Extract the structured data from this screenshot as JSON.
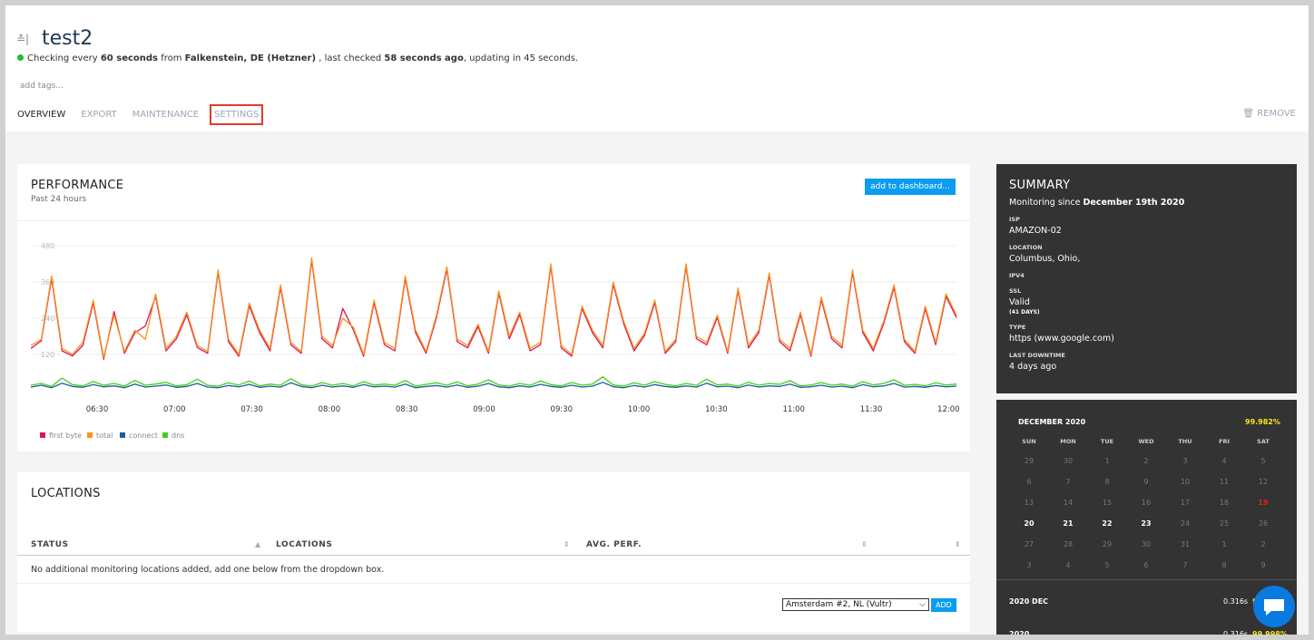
{
  "header": {
    "title": "test2",
    "status": [
      {
        "text": "Checking every "
      },
      {
        "text": "60 seconds",
        "bold": true
      },
      {
        "text": " from "
      },
      {
        "text": "Falkenstein, DE (Hetzner)",
        "bold": true
      },
      {
        "text": " , last checked "
      },
      {
        "text": "58 seconds ago",
        "bold": true
      },
      {
        "text": ", updating in 45 seconds."
      }
    ],
    "tags": "add tags...",
    "tabs": [
      "OVERVIEW",
      "EXPORT",
      "MAINTENANCE",
      "SETTINGS"
    ],
    "active_tab": 0,
    "highlighted_tab": 3,
    "remove": "REMOVE"
  },
  "performance": {
    "title": "PERFORMANCE",
    "subtitle": "Past 24 hours",
    "button": "add to dashboard..."
  },
  "chart_data": {
    "type": "line",
    "ylim": [
      0,
      480
    ],
    "yticks": [
      120,
      240,
      360,
      480
    ],
    "grid": true,
    "xticks": [
      "06:30",
      "07:00",
      "07:30",
      "08:00",
      "08:30",
      "09:00",
      "09:30",
      "10:00",
      "10:30",
      "11:00",
      "11:30",
      "12:00"
    ],
    "series": [
      {
        "name": "first byte",
        "color": "#e0105a",
        "values": [
          140,
          165,
          372,
          132,
          115,
          150,
          292,
          104,
          262,
          124,
          192,
          214,
          312,
          132,
          172,
          252,
          143,
          124,
          392,
          162,
          114,
          282,
          192,
          132,
          342,
          152,
          124,
          432,
          172,
          142,
          272,
          202,
          114,
          292,
          152,
          132,
          372,
          192,
          124,
          242,
          402,
          162,
          142,
          212,
          124,
          322,
          172,
          252,
          132,
          152,
          412,
          142,
          114,
          272,
          192,
          142,
          352,
          222,
          132,
          182,
          292,
          124,
          162,
          412,
          172,
          152,
          242,
          124,
          332,
          142,
          192,
          382,
          162,
          132,
          252,
          114,
          302,
          172,
          142,
          392,
          192,
          132,
          222,
          342,
          162,
          124,
          272,
          152,
          312,
          242
        ]
      },
      {
        "name": "total",
        "color": "#f7941d",
        "values": [
          150,
          170,
          380,
          140,
          120,
          160,
          300,
          110,
          250,
          130,
          200,
          170,
          320,
          140,
          180,
          260,
          150,
          130,
          400,
          170,
          120,
          290,
          200,
          140,
          350,
          160,
          130,
          440,
          180,
          150,
          240,
          210,
          120,
          300,
          160,
          140,
          380,
          200,
          130,
          250,
          410,
          170,
          150,
          220,
          130,
          330,
          180,
          260,
          140,
          160,
          420,
          150,
          120,
          280,
          200,
          150,
          360,
          230,
          140,
          190,
          300,
          130,
          170,
          420,
          180,
          160,
          250,
          130,
          340,
          150,
          200,
          390,
          170,
          140,
          260,
          120,
          310,
          180,
          150,
          400,
          200,
          140,
          230,
          350,
          170,
          130,
          280,
          160,
          320,
          250
        ]
      },
      {
        "name": "connect",
        "color": "#1f5c99",
        "values": [
          12,
          18,
          10,
          25,
          14,
          11,
          20,
          13,
          16,
          10,
          22,
          12,
          15,
          19,
          11,
          14,
          24,
          12,
          10,
          17,
          13,
          21,
          11,
          15,
          12,
          26,
          14,
          10,
          18,
          12,
          16,
          11,
          20,
          13,
          15,
          12,
          22,
          10,
          14,
          17,
          12,
          19,
          11,
          15,
          24,
          13,
          10,
          16,
          12,
          21,
          14,
          11,
          18,
          12,
          15,
          28,
          13,
          10,
          17,
          12,
          20,
          14,
          11,
          16,
          12,
          25,
          13,
          15,
          10,
          19,
          12,
          16,
          14,
          22,
          11,
          13,
          18,
          12,
          15,
          10,
          20,
          13,
          16,
          24,
          12,
          14,
          11,
          17,
          13,
          15
        ]
      },
      {
        "name": "dns",
        "color": "#3ecf1e",
        "values": [
          18,
          24,
          14,
          42,
          20,
          16,
          30,
          18,
          24,
          15,
          34,
          18,
          22,
          28,
          16,
          20,
          38,
          18,
          15,
          26,
          19,
          32,
          16,
          22,
          18,
          40,
          20,
          15,
          27,
          18,
          24,
          16,
          30,
          19,
          22,
          18,
          34,
          15,
          21,
          26,
          18,
          29,
          16,
          22,
          36,
          19,
          15,
          24,
          18,
          32,
          20,
          16,
          27,
          18,
          22,
          46,
          19,
          15,
          26,
          18,
          30,
          21,
          16,
          24,
          18,
          38,
          19,
          22,
          15,
          28,
          18,
          24,
          21,
          33,
          16,
          19,
          27,
          18,
          22,
          15,
          30,
          19,
          24,
          36,
          18,
          21,
          16,
          26,
          19,
          22
        ]
      }
    ]
  },
  "locations": {
    "title": "LOCATIONS",
    "columns": [
      "STATUS",
      "LOCATIONS",
      "AVG. PERF."
    ],
    "empty": "No additional monitoring locations added, add one below from the dropdown box.",
    "select": "Amsterdam #2, NL (Vultr)",
    "add": "ADD"
  },
  "summary": {
    "title": "SUMMARY",
    "since_prefix": "Monitoring since ",
    "since": "December 19th 2020",
    "fields": [
      {
        "label": "ISP",
        "value": "AMAZON-02"
      },
      {
        "label": "LOCATION",
        "value": "Columbus, Ohio,"
      },
      {
        "label": "IPV4"
      },
      {
        "label": "SSL",
        "value": "Valid",
        "note": "(41 DAYS)"
      },
      {
        "label": "TYPE",
        "value": "https (www.google.com)"
      },
      {
        "label": "LAST DOWNTIME",
        "value": "4 days ago"
      }
    ]
  },
  "calendar": {
    "month": "DECEMBER 2020",
    "uptime": "99.982%",
    "weekdays": [
      "SUN",
      "MON",
      "TUE",
      "WED",
      "THU",
      "FRI",
      "SAT"
    ],
    "weeks": [
      [
        29,
        30,
        1,
        2,
        3,
        4,
        5
      ],
      [
        6,
        7,
        8,
        9,
        10,
        11,
        12
      ],
      [
        13,
        14,
        15,
        16,
        17,
        18,
        19
      ],
      [
        20,
        21,
        22,
        23,
        24,
        25,
        26
      ],
      [
        27,
        28,
        29,
        30,
        31,
        1,
        2
      ],
      [
        3,
        4,
        5,
        6,
        7,
        8,
        9
      ]
    ],
    "periods": [
      {
        "name": "2020 DEC",
        "time": "0.316s",
        "uptime": "99.982%"
      },
      {
        "name": "2020",
        "time": "0.316s",
        "uptime": "99.998%"
      }
    ]
  }
}
